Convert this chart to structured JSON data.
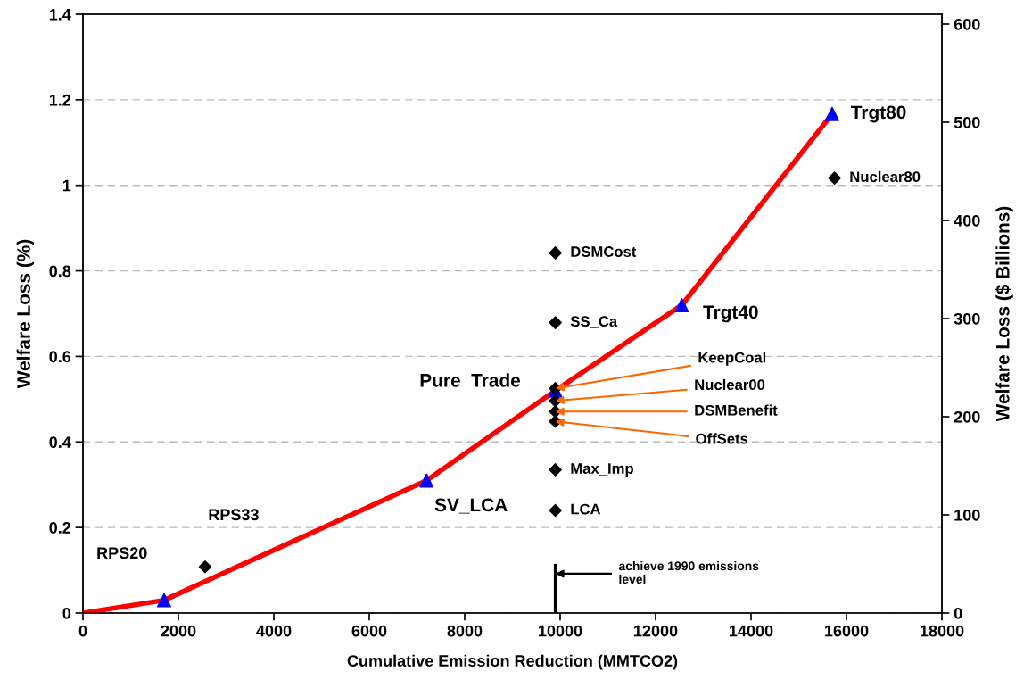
{
  "chart_data": {
    "type": "line",
    "xlabel": "Cumulative Emission Reduction (MMTCO2)",
    "ylabel": "Welfare Loss (%)",
    "y2label": "Welfare Loss ($ Billions)",
    "xlim": [
      0,
      18000
    ],
    "xticks": [
      0,
      2000,
      4000,
      6000,
      8000,
      10000,
      12000,
      14000,
      16000,
      18000
    ],
    "ylim": [
      0,
      1.4
    ],
    "yticks": [
      0,
      0.2,
      0.4,
      0.6,
      0.8,
      1,
      1.2,
      1.4
    ],
    "y2lim": [
      0,
      610
    ],
    "y2ticks": [
      0,
      100,
      200,
      300,
      400,
      500,
      600
    ],
    "grid": "y",
    "series": [
      {
        "color": "#ff0000",
        "marker": "none",
        "line_style": "solid",
        "x": [
          0,
          1700,
          7200,
          9900,
          12550,
          15700
        ],
        "values": [
          0,
          0.03,
          0.31,
          0.52,
          0.72,
          1.167
        ]
      },
      {
        "type": "scatter",
        "color": "#0000ff",
        "marker": "triangle",
        "x": [
          1700,
          7200,
          9900,
          12550,
          15700
        ],
        "values": [
          0.03,
          0.31,
          0.52,
          0.72,
          1.167
        ]
      },
      {
        "type": "scatter",
        "color": "#000000",
        "marker": "diamond",
        "x": [
          2560,
          9900,
          9900,
          9900,
          9900,
          9900,
          9900,
          9900,
          9900,
          15750
        ],
        "values": [
          0.108,
          0.842,
          0.679,
          0.525,
          0.496,
          0.471,
          0.448,
          0.335,
          0.24,
          1.017
        ]
      },
      {
        "type": "line",
        "color": "#000000",
        "marker": "none",
        "line_style": "solid",
        "x": [
          9900,
          9900
        ],
        "values": [
          0,
          0.115
        ]
      }
    ],
    "annotations": [
      {
        "text": "RPS20",
        "x": 1700,
        "y": 0.03
      },
      {
        "text": "RPS33",
        "x": 2560,
        "y": 0.108
      },
      {
        "text": "SV_LCA",
        "x": 7200,
        "y": 0.31
      },
      {
        "text": "Pure  Trade",
        "x": 9900,
        "y": 0.52
      },
      {
        "text": "Trgt40",
        "x": 12550,
        "y": 0.72
      },
      {
        "text": "Trgt80",
        "x": 15700,
        "y": 1.167
      },
      {
        "text": "Nuclear80",
        "x": 15750,
        "y": 1.017
      },
      {
        "text": "DSMCost",
        "x": 9900,
        "y": 0.842
      },
      {
        "text": "SS_Ca",
        "x": 9900,
        "y": 0.679
      },
      {
        "text": "KeepCoal",
        "x": 9900,
        "y": 0.525
      },
      {
        "text": "Nuclear00",
        "x": 9900,
        "y": 0.496
      },
      {
        "text": "DSMBenefit",
        "x": 9900,
        "y": 0.471
      },
      {
        "text": "OffSets",
        "x": 9900,
        "y": 0.448
      },
      {
        "text": "Max_Imp",
        "x": 9900,
        "y": 0.335
      },
      {
        "text": "LCA",
        "x": 9900,
        "y": 0.24
      },
      "achieve 1990 emissions\nlevel"
    ]
  }
}
